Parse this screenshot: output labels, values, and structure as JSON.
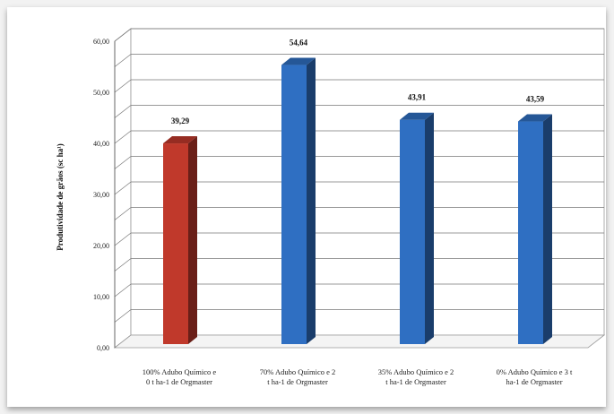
{
  "chart_data": {
    "type": "bar",
    "ylabel": "Produtividade de grãos (sc ha¹)",
    "ylim": [
      0,
      60
    ],
    "yticks": [
      "0,00",
      "10,00",
      "20,00",
      "30,00",
      "40,00",
      "50,00",
      "60,00"
    ],
    "categories": [
      [
        "100% Adubo Químico e",
        "0 t ha-1 de Orgmaster"
      ],
      [
        "70% Adubo Químico e 2",
        "t ha-1 de Orgmaster"
      ],
      [
        "35% Adubo Químico e 2",
        "t ha-1 de Orgmaster"
      ],
      [
        "0% Adubo Químico e 3 t",
        "ha-1 de Orgmaster"
      ]
    ],
    "values": [
      39.29,
      54.64,
      43.91,
      43.59
    ],
    "data_labels": [
      "39,29",
      "54,64",
      "43,91",
      "43,59"
    ],
    "bar_colors": [
      "#c0392b",
      "#2f6fc2",
      "#2f6fc2",
      "#2f6fc2"
    ],
    "grid": true,
    "legend": "none",
    "style": "3d-bar"
  }
}
